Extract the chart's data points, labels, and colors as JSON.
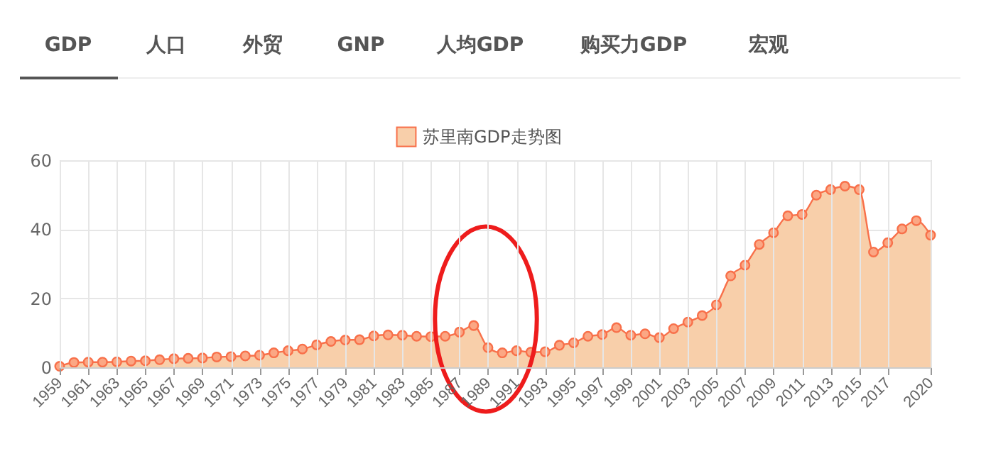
{
  "chart_data": {
    "type": "area",
    "annotations": [
      "GDP",
      "人口",
      "外贸",
      "GNP",
      "人均GDP",
      "购买力GDP",
      "宏观"
    ],
    "x": [
      1959,
      1960,
      1961,
      1962,
      1963,
      1964,
      1965,
      1966,
      1967,
      1968,
      1969,
      1970,
      1971,
      1972,
      1973,
      1974,
      1975,
      1976,
      1977,
      1978,
      1979,
      1980,
      1981,
      1982,
      1983,
      1984,
      1985,
      1986,
      1987,
      1988,
      1989,
      1990,
      1991,
      1992,
      1993,
      1994,
      1995,
      1996,
      1997,
      1998,
      1999,
      2000,
      2001,
      2002,
      2003,
      2004,
      2005,
      2006,
      2007,
      2008,
      2009,
      2010,
      2011,
      2012,
      2013,
      2014,
      2015,
      2016,
      2017,
      2018,
      2019,
      2020
    ],
    "series": [
      {
        "name": "苏里南GDP走势图",
        "color": "#f8cfaa",
        "values": [
          0.3,
          1.4,
          1.5,
          1.5,
          1.6,
          1.8,
          1.9,
          2.2,
          2.5,
          2.6,
          2.7,
          3.0,
          3.1,
          3.3,
          3.5,
          4.2,
          4.8,
          5.3,
          6.5,
          7.5,
          7.9,
          8.0,
          9.1,
          9.4,
          9.3,
          9.0,
          8.9,
          9.0,
          10.2,
          12.1,
          5.7,
          4.2,
          4.8,
          4.4,
          4.5,
          6.4,
          7.1,
          9.0,
          9.5,
          11.5,
          9.3,
          9.7,
          8.6,
          11.2,
          13.1,
          15.0,
          18.1,
          26.5,
          29.6,
          35.6,
          39.0,
          43.9,
          44.3,
          49.9,
          51.5,
          52.5,
          51.5,
          33.4,
          36.1,
          40.1,
          42.5,
          38.3
        ]
      }
    ],
    "xlim": [
      1959,
      2020
    ],
    "xticks": [
      1959,
      1961,
      1963,
      1965,
      1967,
      1969,
      1971,
      1973,
      1975,
      1977,
      1979,
      1981,
      1983,
      1985,
      1987,
      1989,
      1991,
      1993,
      1995,
      1997,
      1999,
      2001,
      2003,
      2005,
      2007,
      2009,
      2011,
      2013,
      2015,
      2017,
      2020
    ],
    "ylim": [
      0,
      60
    ],
    "yticks": [
      0,
      20,
      40,
      60
    ],
    "grid": true,
    "legend": "top",
    "marker": "circle",
    "line_style": "solid"
  }
}
